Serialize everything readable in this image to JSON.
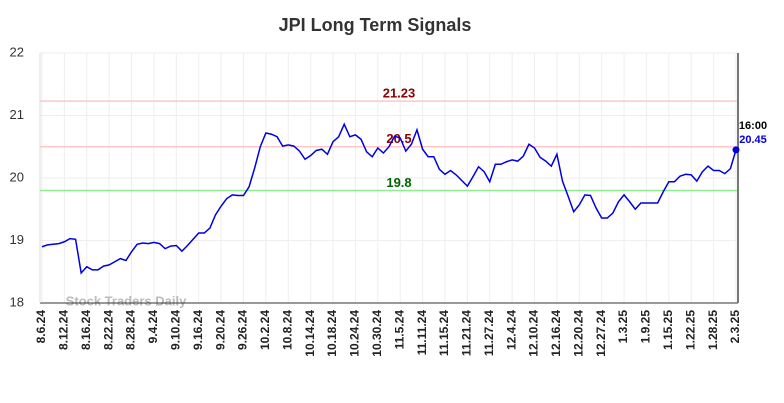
{
  "chart_data": {
    "type": "line",
    "title": "JPI Long Term Signals",
    "watermark": "Stock Traders Daily",
    "categories": [
      "8.6.24",
      null,
      null,
      null,
      "8.12.24",
      null,
      null,
      null,
      "8.16.24",
      null,
      null,
      null,
      "8.22.24",
      null,
      null,
      null,
      "8.28.24",
      null,
      null,
      null,
      "9.4.24",
      null,
      null,
      null,
      "9.10.24",
      null,
      null,
      null,
      "9.16.24",
      null,
      null,
      null,
      "9.20.24",
      null,
      null,
      null,
      "9.26.24",
      null,
      null,
      null,
      "10.2.24",
      null,
      null,
      null,
      "10.8.24",
      null,
      null,
      null,
      "10.14.24",
      null,
      null,
      null,
      "10.18.24",
      null,
      null,
      null,
      "10.24.24",
      null,
      null,
      null,
      "10.30.24",
      null,
      null,
      null,
      "11.5.24",
      null,
      null,
      null,
      "11.11.24",
      null,
      null,
      null,
      "11.15.24",
      null,
      null,
      null,
      "11.21.24",
      null,
      null,
      null,
      "11.27.24",
      null,
      null,
      null,
      "12.4.24",
      null,
      null,
      null,
      "12.10.24",
      null,
      null,
      null,
      "12.16.24",
      null,
      null,
      null,
      "12.20.24",
      null,
      null,
      null,
      "12.27.24",
      null,
      null,
      null,
      "1.3.25",
      null,
      null,
      null,
      "1.9.25",
      null,
      null,
      null,
      "1.15.25",
      null,
      null,
      null,
      "1.22.25",
      null,
      null,
      null,
      "1.28.25",
      null,
      null,
      null,
      "2.3.25"
    ],
    "series": [
      {
        "color": "#0000e0",
        "values": [
          18.9,
          18.93,
          18.94,
          18.95,
          18.98,
          19.03,
          19.02,
          18.48,
          18.58,
          18.53,
          18.53,
          18.59,
          18.61,
          18.66,
          18.71,
          18.68,
          18.82,
          18.94,
          18.96,
          18.95,
          18.97,
          18.95,
          18.87,
          18.91,
          18.92,
          18.83,
          18.92,
          19.02,
          19.12,
          19.12,
          19.2,
          19.41,
          19.55,
          19.67,
          19.73,
          19.72,
          19.72,
          19.86,
          20.16,
          20.5,
          20.72,
          20.7,
          20.66,
          20.51,
          20.53,
          20.51,
          20.43,
          20.3,
          20.36,
          20.44,
          20.46,
          20.38,
          20.58,
          20.66,
          20.86,
          20.66,
          20.69,
          20.62,
          20.42,
          20.34,
          20.48,
          20.4,
          20.5,
          20.67,
          20.64,
          20.43,
          20.54,
          20.77,
          20.46,
          20.34,
          20.34,
          20.14,
          20.06,
          20.12,
          20.05,
          19.96,
          19.87,
          20.02,
          20.18,
          20.1,
          19.94,
          20.22,
          20.22,
          20.26,
          20.29,
          20.27,
          20.35,
          20.54,
          20.48,
          20.33,
          20.27,
          20.19,
          20.38,
          19.95,
          19.71,
          19.46,
          19.57,
          19.73,
          19.72,
          19.52,
          19.36,
          19.36,
          19.44,
          19.62,
          19.73,
          19.62,
          19.5,
          19.6,
          19.6,
          19.6,
          19.6,
          19.78,
          19.94,
          19.94,
          20.03,
          20.06,
          20.05,
          19.95,
          20.1,
          20.19,
          20.12,
          20.12,
          20.07,
          20.15,
          20.45
        ]
      }
    ],
    "last_label": "16:00",
    "hlines": [
      {
        "value": 21.23,
        "color": "#ffc8c8",
        "label_color": "#8b0000"
      },
      {
        "value": 20.5,
        "color": "#ffc8c8",
        "label_color": "#8b0000"
      },
      {
        "value": 19.8,
        "color": "#90ee90",
        "label_color": "#006400"
      }
    ],
    "ylim": [
      18,
      22
    ],
    "yticks": [
      18,
      19,
      20,
      21,
      22
    ],
    "grid": true
  }
}
